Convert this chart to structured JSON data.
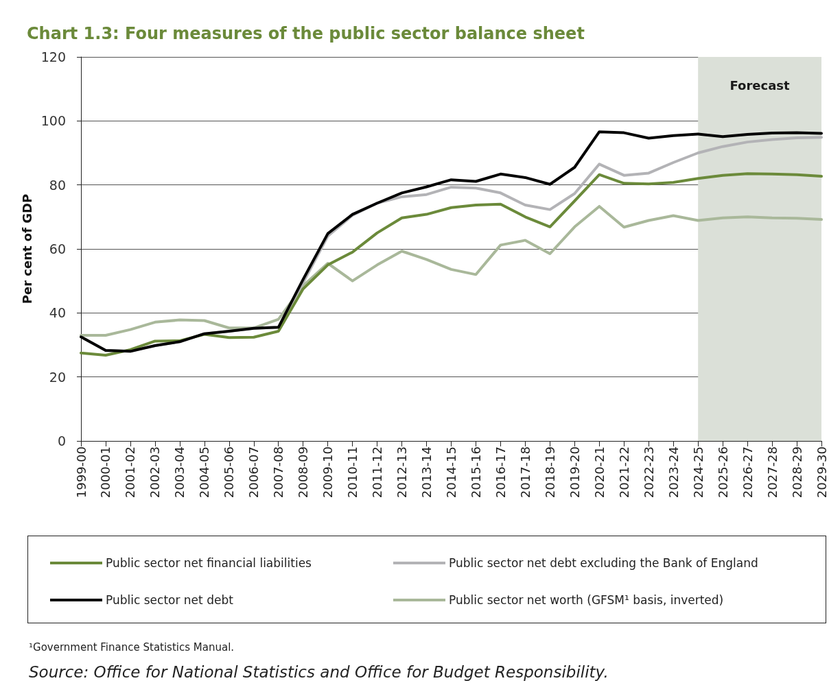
{
  "chart_data": {
    "type": "line",
    "title": "Chart 1.3: Four measures of the public sector balance sheet",
    "ylabel": "Per cent of GDP",
    "categories": [
      "1999-00",
      "2000-01",
      "2001-02",
      "2002-03",
      "2003-04",
      "2004-05",
      "2005-06",
      "2006-07",
      "2007-08",
      "2008-09",
      "2009-10",
      "2010-11",
      "2011-12",
      "2012-13",
      "2013-14",
      "2014-15",
      "2015-16",
      "2016-17",
      "2017-18",
      "2018-19",
      "2019-20",
      "2020-21",
      "2021-22",
      "2022-23",
      "2023-24",
      "2024-25",
      "2025-26",
      "2026-27",
      "2027-28",
      "2028-29",
      "2029-30"
    ],
    "series": [
      {
        "name": "Public sector net financial liabilities",
        "color": "#6b8a3a",
        "values": [
          27.5,
          26.8,
          28.5,
          31.2,
          31.3,
          33.3,
          32.3,
          32.4,
          34.3,
          47.5,
          55,
          59,
          65,
          69.7,
          70.8,
          72.9,
          73.7,
          74,
          70,
          66.9,
          75,
          83.2,
          80.5,
          80.3,
          80.8,
          82,
          83,
          83.5,
          83.4,
          83.2,
          82.7
        ]
      },
      {
        "name": "Public sector net debt",
        "color": "#000000",
        "values": [
          32.5,
          28.3,
          28,
          29.8,
          31,
          33.5,
          34.3,
          35.2,
          35.5,
          50.5,
          64.8,
          70.8,
          74.3,
          77.5,
          79.4,
          81.6,
          81.1,
          83.4,
          82.3,
          80.2,
          85.5,
          96.6,
          96.3,
          94.6,
          95.4,
          95.9,
          95.1,
          95.8,
          96.2,
          96.3,
          96.1
        ]
      },
      {
        "name": "Public sector net debt excluding the Bank of England",
        "color": "#b3b3b6",
        "values": [
          32.5,
          28.3,
          28,
          29.8,
          31,
          33.5,
          34.3,
          35.2,
          35.5,
          49.5,
          64,
          70.5,
          74.3,
          76.3,
          77,
          79.3,
          79,
          77.5,
          73.7,
          72.3,
          77.3,
          86.5,
          83,
          83.7,
          87,
          90,
          92,
          93.4,
          94.2,
          94.7,
          94.9
        ]
      },
      {
        "name": "Public sector net worth (GFSM¹ basis, inverted)",
        "color": "#a9b89a",
        "values": [
          33,
          33,
          34.8,
          37.1,
          37.8,
          37.6,
          35.3,
          35.3,
          38,
          48.5,
          55.5,
          50,
          55,
          59.3,
          56.7,
          53.6,
          52,
          61.2,
          62.7,
          58.5,
          66.9,
          73.3,
          66.8,
          68.9,
          70.4,
          68.9,
          69.7,
          70,
          69.7,
          69.6,
          69.2
        ]
      }
    ],
    "ylim": [
      0,
      120
    ],
    "yticks": [
      0,
      20,
      40,
      60,
      80,
      100,
      120
    ],
    "grid": "y",
    "legend": "bottom",
    "line_style": "solid",
    "marker": "none",
    "bands": [
      {
        "axis": "x",
        "from": "2024-25",
        "to": "2029-30",
        "label": "Forecast",
        "color": "#dbe0d8"
      }
    ],
    "annotations": [
      "¹Government Finance Statistics Manual.",
      "Source: Office for National Statistics and Office for Budget Responsibility."
    ]
  }
}
